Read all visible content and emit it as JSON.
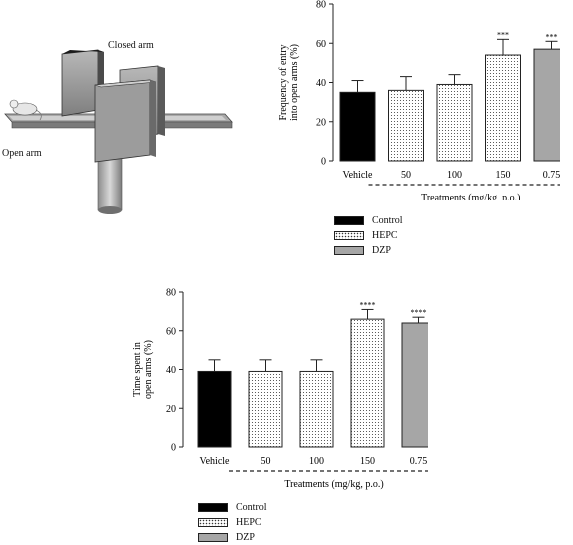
{
  "maze": {
    "closed_arm_label": "Closed arm",
    "open_arm_label": "Open arm"
  },
  "colors": {
    "control": "#000000",
    "hepc": "#ffffff",
    "dzp": "#a6a6a6",
    "axis": "#222222"
  },
  "legend": [
    {
      "key": "control",
      "label": "Control"
    },
    {
      "key": "hepc",
      "label": "HEPC"
    },
    {
      "key": "dzp",
      "label": "DZP"
    }
  ],
  "chart_data": [
    {
      "type": "bar",
      "ylabel": "Frequency of entry into open arms (%)",
      "xlabel": "Treatments (mg/kg, p.o.)",
      "ylim": [
        0,
        80
      ],
      "yticks": [
        0,
        20,
        40,
        60,
        80
      ],
      "categories": [
        "Vehicle",
        "50",
        "100",
        "150",
        "0.75"
      ],
      "groups": [
        "control",
        "hepc",
        "hepc",
        "hepc",
        "dzp"
      ],
      "values": [
        35,
        36,
        39,
        54,
        57
      ],
      "errors": [
        6,
        7,
        5,
        8,
        4
      ],
      "significance": [
        "",
        "",
        "",
        "***",
        "***"
      ]
    },
    {
      "type": "bar",
      "ylabel": "Time spent in open arms (%)",
      "xlabel": "Treatments (mg/kg, p.o.)",
      "ylim": [
        0,
        80
      ],
      "yticks": [
        0,
        20,
        40,
        60,
        80
      ],
      "categories": [
        "Vehicle",
        "50",
        "100",
        "150",
        "0.75"
      ],
      "groups": [
        "control",
        "hepc",
        "hepc",
        "hepc",
        "dzp"
      ],
      "values": [
        39,
        39,
        39,
        66,
        64
      ],
      "errors": [
        6,
        6,
        6,
        5,
        3
      ],
      "significance": [
        "",
        "",
        "",
        "****",
        "****"
      ]
    }
  ]
}
